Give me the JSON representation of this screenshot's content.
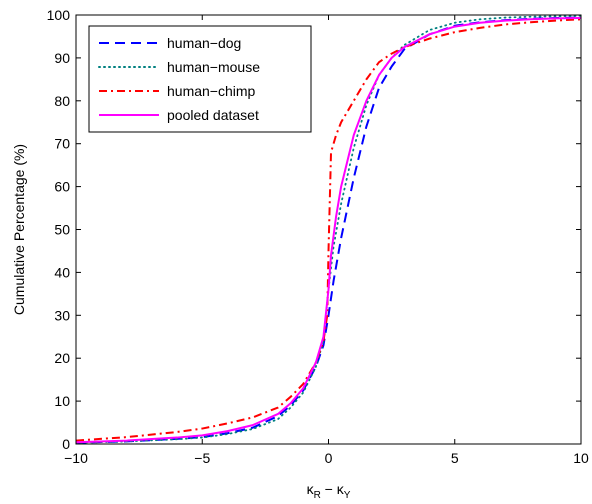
{
  "chart_data": {
    "type": "line",
    "title": "",
    "xlabel_main": "κ",
    "xlabel_sub1": "R",
    "xlabel_mid": " − κ",
    "xlabel_sub2": "Y",
    "ylabel": "Cumulative Percentage (%)",
    "xlim": [
      -10,
      10
    ],
    "ylim": [
      0,
      100
    ],
    "xticks": [
      -10,
      -5,
      0,
      5,
      10
    ],
    "yticks": [
      0,
      10,
      20,
      30,
      40,
      50,
      60,
      70,
      80,
      90,
      100
    ],
    "grid": false,
    "legend_position": "top-left",
    "series": [
      {
        "name": "human−dog",
        "color": "#0000ff",
        "dash": "10,6",
        "x": [
          -10,
          -8,
          -6,
          -5,
          -4,
          -3,
          -2,
          -1.5,
          -1,
          -0.5,
          -0.2,
          0,
          0.2,
          0.5,
          1,
          1.5,
          2,
          2.5,
          3,
          4,
          5,
          6,
          7,
          8,
          9,
          10
        ],
        "y": [
          0.3,
          0.6,
          1.2,
          1.6,
          2.5,
          3.8,
          6.5,
          9,
          12.5,
          18,
          23,
          30,
          38,
          48,
          62,
          74,
          83,
          88,
          92,
          95.5,
          97.5,
          98.3,
          98.8,
          99.1,
          99.3,
          99.4
        ]
      },
      {
        "name": "human−mouse",
        "color": "#008080",
        "dash": "1,4",
        "x": [
          -10,
          -8,
          -6,
          -5,
          -4,
          -3,
          -2,
          -1.5,
          -1,
          -0.5,
          -0.2,
          0,
          0.2,
          0.5,
          1,
          1.5,
          2,
          2.5,
          3,
          4,
          5,
          6,
          7,
          8,
          9,
          10
        ],
        "y": [
          0.3,
          0.6,
          1.1,
          1.5,
          2.3,
          3.5,
          5.8,
          8.5,
          12,
          18,
          24,
          36,
          46,
          56,
          69,
          79,
          86,
          90,
          93,
          96.5,
          98.2,
          99,
          99.4,
          99.6,
          99.7,
          99.8
        ]
      },
      {
        "name": "human−chimp",
        "color": "#ff0000",
        "dash": "8,4,2,4",
        "x": [
          -10,
          -8,
          -6,
          -5,
          -4,
          -3,
          -2,
          -1.5,
          -1,
          -0.5,
          -0.2,
          -0.05,
          0,
          0.1,
          0.3,
          0.5,
          1,
          1.5,
          2,
          2.5,
          3,
          4,
          5,
          6,
          7,
          8,
          9,
          10
        ],
        "y": [
          0.8,
          1.6,
          2.8,
          3.6,
          4.8,
          6.2,
          8.5,
          11,
          14,
          19,
          24,
          30,
          45,
          68,
          72,
          75,
          80,
          85,
          89,
          91,
          92.5,
          94.5,
          96,
          97,
          97.8,
          98.3,
          98.7,
          99
        ]
      },
      {
        "name": "pooled dataset",
        "color": "#ff00ff",
        "dash": "",
        "x": [
          -10,
          -8,
          -6,
          -5,
          -4,
          -3,
          -2,
          -1.5,
          -1,
          -0.5,
          -0.2,
          0,
          0.1,
          0.3,
          0.5,
          1,
          1.5,
          2,
          2.5,
          3,
          4,
          5,
          6,
          7,
          8,
          9,
          10
        ],
        "y": [
          0.4,
          0.8,
          1.5,
          2,
          3,
          4.4,
          7,
          9.5,
          13,
          19,
          25,
          36,
          44,
          53,
          60,
          72,
          80,
          86,
          90,
          92.5,
          95.5,
          97.3,
          98.2,
          98.7,
          99,
          99.2,
          99.3
        ]
      }
    ]
  }
}
